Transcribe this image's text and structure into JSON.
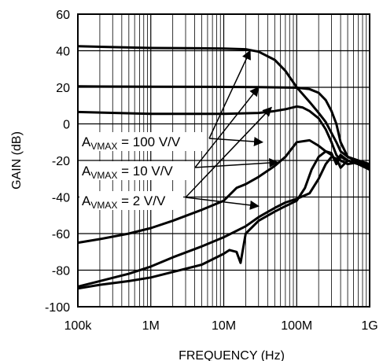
{
  "chart_data": {
    "type": "line",
    "title": "",
    "xlabel": "FREQUENCY (Hz)",
    "ylabel": "GAIN (dB)",
    "x_scale": "log",
    "xlim": [
      100000,
      1000000000
    ],
    "ylim": [
      -100,
      60
    ],
    "x_ticks": [
      100000,
      1000000,
      10000000,
      100000000,
      1000000000
    ],
    "x_tick_labels": [
      "100k",
      "1M",
      "10M",
      "100M",
      "1G"
    ],
    "y_ticks": [
      60,
      40,
      20,
      0,
      -20,
      -40,
      -60,
      -80,
      -100
    ],
    "y_tick_labels": [
      "60",
      "40",
      "20",
      "0",
      "-20",
      "-40",
      "-60",
      "-80",
      "-100"
    ],
    "grid": true,
    "legend": "none",
    "series": [
      {
        "label_prefix": "A",
        "label_sub": "VMAX",
        "label_suffix": " = 100 V/V",
        "gain": {
          "x": [
            100000,
            300000,
            1000000,
            3000000,
            10000000,
            20000000,
            30000000,
            50000000,
            70000000,
            100000000,
            150000000,
            200000000,
            250000000,
            300000000,
            350000000,
            400000000,
            500000000,
            700000000,
            1000000000
          ],
          "y": [
            42.5,
            42,
            41.5,
            41.4,
            41.2,
            40.8,
            39.5,
            35,
            29,
            20,
            12,
            6,
            1,
            -5,
            -10,
            -15,
            -18,
            -20,
            -22
          ]
        },
        "leakage": {
          "x": [
            100000,
            200000,
            500000,
            1000000,
            2000000,
            5000000,
            10000000,
            12000000,
            15000000,
            17000000,
            20000000,
            30000000,
            50000000,
            70000000,
            100000000,
            130000000,
            160000000,
            200000000,
            250000000,
            300000000,
            350000000,
            400000000,
            500000000,
            700000000,
            1000000000
          ],
          "y": [
            -90,
            -88,
            -86,
            -84,
            -81,
            -77,
            -71,
            -69,
            -70,
            -76,
            -60,
            -53,
            -48,
            -45,
            -42,
            -35,
            -25,
            -18,
            -15,
            -16,
            -22,
            -18,
            -20,
            -22,
            -24
          ]
        }
      },
      {
        "label_prefix": "A",
        "label_sub": "VMAX",
        "label_suffix": " = 10 V/V",
        "gain": {
          "x": [
            100000,
            1000000,
            10000000,
            30000000,
            100000000,
            150000000,
            200000000,
            250000000,
            300000000,
            350000000,
            400000000,
            500000000,
            700000000,
            1000000000
          ],
          "y": [
            20.5,
            20.3,
            20.2,
            20.1,
            19.8,
            19,
            17,
            13,
            7,
            0,
            -10,
            -18,
            -21,
            -23
          ]
        },
        "leakage": {
          "x": [
            100000,
            200000,
            500000,
            1000000,
            2000000,
            5000000,
            10000000,
            20000000,
            30000000,
            50000000,
            70000000,
            100000000,
            150000000,
            200000000,
            250000000,
            300000000,
            350000000,
            400000000,
            500000000,
            700000000,
            1000000000
          ],
          "y": [
            -89,
            -86,
            -82,
            -78,
            -73,
            -67,
            -62,
            -56,
            -51,
            -46,
            -43,
            -41,
            -38,
            -30,
            -22,
            -18,
            -19,
            -24,
            -20,
            -22,
            -25
          ]
        }
      },
      {
        "label_prefix": "A",
        "label_sub": "VMAX",
        "label_suffix": " = 2 V/V",
        "gain": {
          "x": [
            100000,
            1000000,
            10000000,
            30000000,
            50000000,
            70000000,
            100000000,
            120000000,
            150000000,
            200000000,
            250000000,
            300000000,
            350000000,
            400000000,
            500000000,
            700000000,
            1000000000
          ],
          "y": [
            6.5,
            5.5,
            5.5,
            6,
            7,
            8,
            9.5,
            9,
            7,
            3,
            -3,
            -10,
            -17,
            -20,
            -22,
            -21,
            -23
          ]
        },
        "leakage": {
          "x": [
            100000,
            200000,
            500000,
            1000000,
            2000000,
            5000000,
            10000000,
            15000000,
            20000000,
            30000000,
            50000000,
            70000000,
            100000000,
            150000000,
            200000000,
            250000000,
            300000000,
            350000000,
            400000000,
            500000000,
            700000000,
            1000000000
          ],
          "y": [
            -65,
            -63,
            -60,
            -57,
            -53,
            -47,
            -42,
            -35,
            -33,
            -29,
            -23,
            -18,
            -10,
            -9,
            -12,
            -15,
            -17,
            -21,
            -17,
            -20,
            -22,
            -25
          ]
        }
      }
    ]
  }
}
